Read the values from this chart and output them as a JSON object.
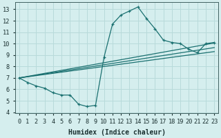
{
  "title": "",
  "xlabel": "Humidex (Indice chaleur)",
  "ylabel": "",
  "bg_color": "#d5eeee",
  "grid_color": "#b8dada",
  "line_color": "#1a7070",
  "xlim": [
    -0.5,
    23.5
  ],
  "ylim": [
    3.9,
    13.6
  ],
  "xticks": [
    0,
    1,
    2,
    3,
    4,
    5,
    6,
    7,
    8,
    9,
    10,
    11,
    12,
    13,
    14,
    15,
    16,
    17,
    18,
    19,
    20,
    21,
    22,
    23
  ],
  "yticks": [
    4,
    5,
    6,
    7,
    8,
    9,
    10,
    11,
    12,
    13
  ],
  "main_series": {
    "x": [
      0,
      1,
      2,
      3,
      4,
      5,
      6,
      7,
      8,
      9,
      10,
      11,
      12,
      13,
      14,
      15,
      16,
      17,
      18,
      19,
      20,
      21,
      22,
      23
    ],
    "y": [
      7.0,
      6.6,
      6.3,
      6.1,
      5.7,
      5.5,
      5.5,
      4.7,
      4.5,
      4.6,
      8.8,
      11.7,
      12.5,
      12.85,
      13.2,
      12.2,
      11.3,
      10.3,
      10.1,
      10.0,
      9.5,
      9.2,
      10.0,
      10.1
    ]
  },
  "smooth_lines": [
    {
      "x": [
        0,
        23
      ],
      "y": [
        7.0,
        10.05
      ]
    },
    {
      "x": [
        0,
        23
      ],
      "y": [
        7.0,
        9.65
      ]
    },
    {
      "x": [
        0,
        23
      ],
      "y": [
        7.0,
        9.3
      ]
    }
  ]
}
